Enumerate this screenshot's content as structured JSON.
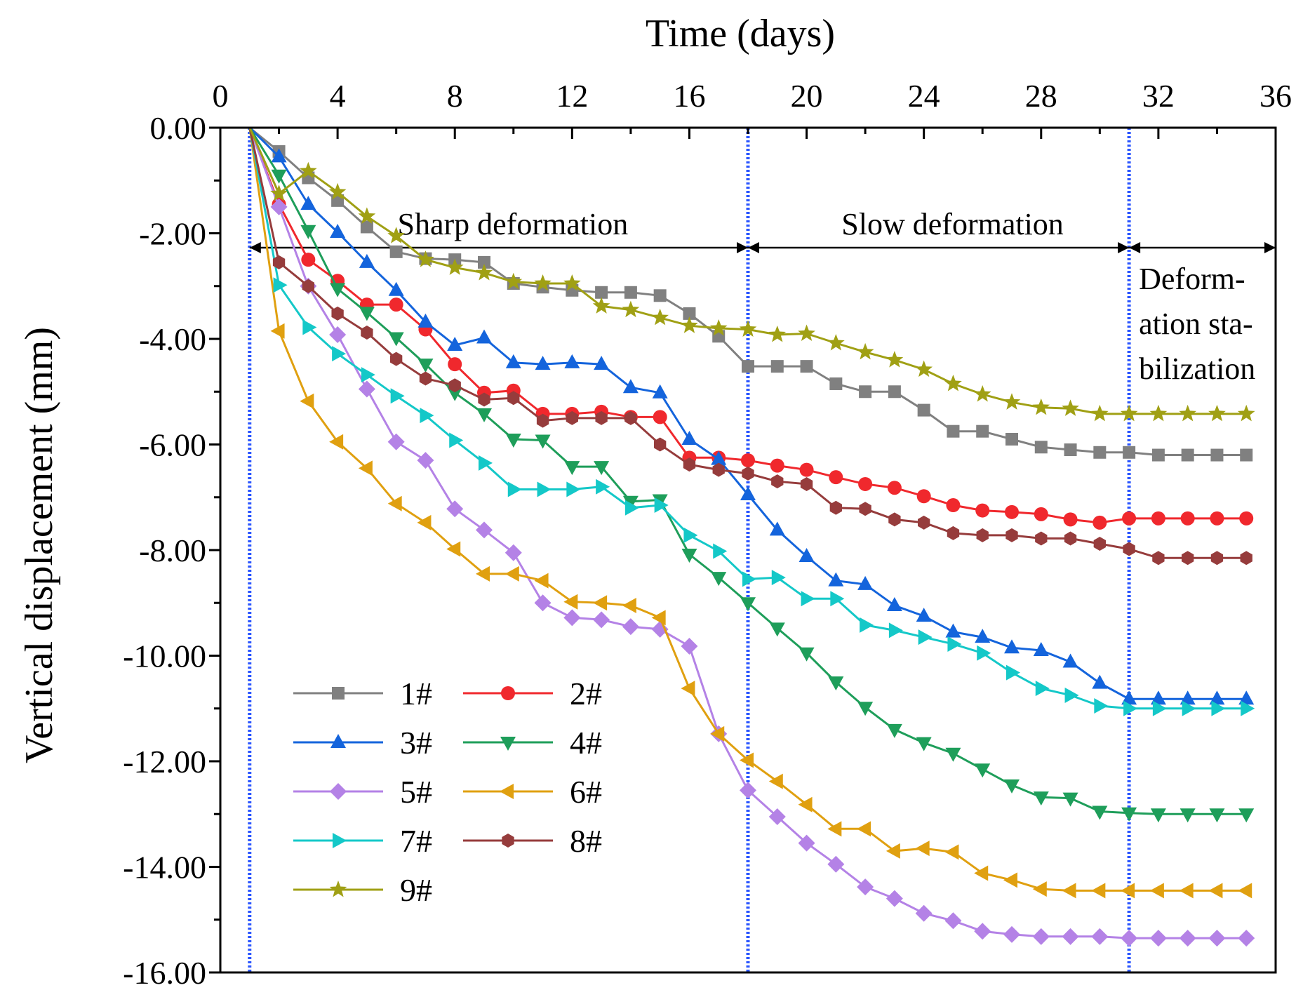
{
  "chart_data": {
    "type": "line",
    "title": "",
    "xlabel": "Time (days)",
    "ylabel": "Vertical displacement (mm)",
    "xlim": [
      0,
      36
    ],
    "ylim": [
      -16,
      0
    ],
    "x_ticks": [
      {
        "value": 0,
        "label": "0"
      },
      {
        "value": 4,
        "label": "4"
      },
      {
        "value": 8,
        "label": "8"
      },
      {
        "value": 12,
        "label": "12"
      },
      {
        "value": 16,
        "label": "16"
      },
      {
        "value": 20,
        "label": "20"
      },
      {
        "value": 24,
        "label": "24"
      },
      {
        "value": 28,
        "label": "28"
      },
      {
        "value": 32,
        "label": "32"
      },
      {
        "value": 36,
        "label": "36"
      }
    ],
    "y_ticks": [
      {
        "value": 0,
        "label": "0.00"
      },
      {
        "value": -2,
        "label": "-2.00"
      },
      {
        "value": -4,
        "label": "-4.00"
      },
      {
        "value": -6,
        "label": "-6.00"
      },
      {
        "value": -8,
        "label": "-8.00"
      },
      {
        "value": -10,
        "label": "-10.00"
      },
      {
        "value": -12,
        "label": "-12.00"
      },
      {
        "value": -14,
        "label": "-14.00"
      },
      {
        "value": -16,
        "label": "-16.00"
      }
    ],
    "grid": false,
    "legend_position": "bottom-left",
    "stage_boundaries": [
      1,
      18,
      31
    ],
    "stages": [
      {
        "label": "Sharp deformation",
        "from": 1,
        "to": 18
      },
      {
        "label": "Slow deformation",
        "from": 18,
        "to": 31
      },
      {
        "label_lines": [
          "Deform-",
          "ation sta-",
          "bilization"
        ],
        "from": 31,
        "to": 36
      }
    ],
    "x": [
      1,
      2,
      3,
      4,
      5,
      6,
      7,
      8,
      9,
      10,
      11,
      12,
      13,
      14,
      15,
      16,
      17,
      18,
      19,
      20,
      21,
      22,
      23,
      24,
      25,
      26,
      27,
      28,
      29,
      30,
      31,
      32,
      33,
      34,
      35
    ],
    "series": [
      {
        "name": "1#",
        "color": "#808080",
        "marker": "square",
        "values": [
          0,
          -0.45,
          -0.95,
          -1.38,
          -1.88,
          -2.35,
          -2.48,
          -2.5,
          -2.55,
          -2.95,
          -3.02,
          -3.08,
          -3.12,
          -3.12,
          -3.18,
          -3.52,
          -3.95,
          -4.52,
          -4.52,
          -4.52,
          -4.85,
          -5.0,
          -5.0,
          -5.35,
          -5.75,
          -5.75,
          -5.9,
          -6.05,
          -6.1,
          -6.15,
          -6.15,
          -6.2,
          -6.2,
          -6.2,
          -6.2
        ]
      },
      {
        "name": "2#",
        "color": "#f0282d",
        "marker": "circle",
        "values": [
          0,
          -1.45,
          -2.5,
          -2.9,
          -3.35,
          -3.35,
          -3.82,
          -4.48,
          -5.02,
          -4.98,
          -5.42,
          -5.42,
          -5.38,
          -5.48,
          -5.48,
          -6.25,
          -6.25,
          -6.3,
          -6.4,
          -6.48,
          -6.62,
          -6.75,
          -6.82,
          -6.98,
          -7.15,
          -7.25,
          -7.28,
          -7.32,
          -7.42,
          -7.48,
          -7.4,
          -7.4,
          -7.4,
          -7.4,
          -7.4
        ]
      },
      {
        "name": "3#",
        "color": "#1464dc",
        "marker": "triangle-up",
        "values": [
          0,
          -0.55,
          -1.45,
          -1.98,
          -2.55,
          -3.08,
          -3.68,
          -4.12,
          -3.98,
          -4.45,
          -4.48,
          -4.45,
          -4.48,
          -4.92,
          -5.02,
          -5.9,
          -6.28,
          -6.95,
          -7.62,
          -8.12,
          -8.58,
          -8.65,
          -9.05,
          -9.25,
          -9.55,
          -9.65,
          -9.85,
          -9.9,
          -10.12,
          -10.52,
          -10.82,
          -10.82,
          -10.82,
          -10.82,
          -10.82
        ]
      },
      {
        "name": "4#",
        "color": "#1e9e5a",
        "marker": "triangle-down",
        "values": [
          0,
          -0.9,
          -1.95,
          -3.05,
          -3.5,
          -3.98,
          -4.48,
          -5.02,
          -5.42,
          -5.9,
          -5.92,
          -6.42,
          -6.42,
          -7.08,
          -7.05,
          -8.08,
          -8.52,
          -9.0,
          -9.48,
          -9.95,
          -10.5,
          -10.98,
          -11.4,
          -11.65,
          -11.85,
          -12.15,
          -12.45,
          -12.68,
          -12.7,
          -12.95,
          -12.98,
          -13.0,
          -13.0,
          -13.0,
          -13.0
        ]
      },
      {
        "name": "5#",
        "color": "#b482e6",
        "marker": "diamond",
        "values": [
          0,
          -1.5,
          -3.0,
          -3.92,
          -4.95,
          -5.95,
          -6.3,
          -7.22,
          -7.62,
          -8.05,
          -9.0,
          -9.28,
          -9.32,
          -9.45,
          -9.5,
          -9.82,
          -11.48,
          -12.55,
          -13.05,
          -13.55,
          -13.95,
          -14.38,
          -14.6,
          -14.88,
          -15.02,
          -15.22,
          -15.28,
          -15.32,
          -15.32,
          -15.32,
          -15.35,
          -15.35,
          -15.35,
          -15.35,
          -15.35
        ]
      },
      {
        "name": "6#",
        "color": "#e0a010",
        "marker": "triangle-left",
        "values": [
          0,
          -3.85,
          -5.18,
          -5.95,
          -6.45,
          -7.12,
          -7.48,
          -7.98,
          -8.45,
          -8.45,
          -8.58,
          -8.98,
          -9.0,
          -9.05,
          -9.28,
          -10.62,
          -11.48,
          -11.98,
          -12.38,
          -12.82,
          -13.28,
          -13.28,
          -13.7,
          -13.65,
          -13.72,
          -14.12,
          -14.25,
          -14.42,
          -14.45,
          -14.45,
          -14.45,
          -14.45,
          -14.45,
          -14.45,
          -14.45
        ]
      },
      {
        "name": "7#",
        "color": "#14c8c8",
        "marker": "triangle-right",
        "values": [
          0,
          -2.98,
          -3.78,
          -4.28,
          -4.68,
          -5.08,
          -5.45,
          -5.92,
          -6.35,
          -6.85,
          -6.85,
          -6.85,
          -6.8,
          -7.2,
          -7.15,
          -7.72,
          -8.02,
          -8.55,
          -8.52,
          -8.92,
          -8.92,
          -9.42,
          -9.52,
          -9.65,
          -9.78,
          -9.95,
          -10.32,
          -10.62,
          -10.75,
          -10.95,
          -11.0,
          -11.0,
          -11.0,
          -11.0,
          -11.0
        ]
      },
      {
        "name": "8#",
        "color": "#963c3c",
        "marker": "hexagon",
        "values": [
          0,
          -2.55,
          -3.0,
          -3.52,
          -3.88,
          -4.38,
          -4.75,
          -4.88,
          -5.15,
          -5.12,
          -5.55,
          -5.5,
          -5.5,
          -5.5,
          -6.0,
          -6.38,
          -6.48,
          -6.55,
          -6.7,
          -6.75,
          -7.2,
          -7.22,
          -7.42,
          -7.48,
          -7.68,
          -7.72,
          -7.72,
          -7.78,
          -7.78,
          -7.88,
          -7.98,
          -8.15,
          -8.15,
          -8.15,
          -8.15
        ]
      },
      {
        "name": "9#",
        "color": "#a0a014",
        "marker": "star",
        "values": [
          0,
          -1.25,
          -0.82,
          -1.22,
          -1.68,
          -2.05,
          -2.5,
          -2.65,
          -2.75,
          -2.92,
          -2.95,
          -2.95,
          -3.38,
          -3.45,
          -3.6,
          -3.75,
          -3.8,
          -3.82,
          -3.92,
          -3.9,
          -4.08,
          -4.25,
          -4.4,
          -4.58,
          -4.85,
          -5.05,
          -5.2,
          -5.3,
          -5.32,
          -5.42,
          -5.42,
          -5.42,
          -5.42,
          -5.42,
          -5.42
        ]
      }
    ]
  }
}
